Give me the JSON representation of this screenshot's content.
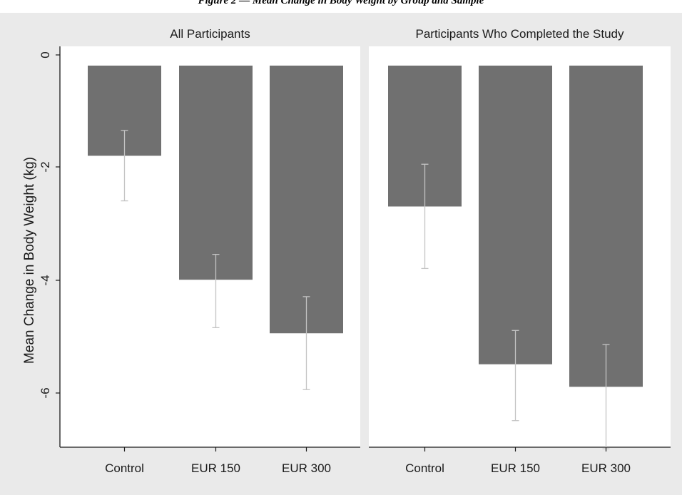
{
  "figure_caption": "Figure 2 — Mean Change in Body Weight by Group and Sample",
  "colors": {
    "background": "#eaeaea",
    "panel": "#ffffff",
    "bar": "#707070",
    "error_bar": "#c4c4c4",
    "axis": "#1a1a1a"
  },
  "chart_data": {
    "type": "bar",
    "ylabel": "Mean Change in Body Weight (kg)",
    "ylim": [
      -7,
      0
    ],
    "yticks": [
      0,
      -2,
      -4,
      -6
    ],
    "ytick_labels": [
      "0",
      "-2",
      "-4",
      "-6"
    ],
    "grid": false,
    "error_bars": true,
    "panels": [
      {
        "title": "All Participants",
        "categories": [
          "Control",
          "EUR 150",
          "EUR 300"
        ],
        "values": [
          -1.6,
          -3.8,
          -4.75
        ],
        "error_low": [
          -2.4,
          -4.65,
          -5.75
        ],
        "error_high": [
          -1.15,
          -3.35,
          -4.1
        ]
      },
      {
        "title": "Participants Who Completed the Study",
        "categories": [
          "Control",
          "EUR 150",
          "EUR 300"
        ],
        "values": [
          -2.5,
          -5.3,
          -5.7
        ],
        "error_low": [
          -3.6,
          -6.3,
          -6.8
        ],
        "error_high": [
          -1.75,
          -4.7,
          -4.95
        ]
      }
    ]
  }
}
